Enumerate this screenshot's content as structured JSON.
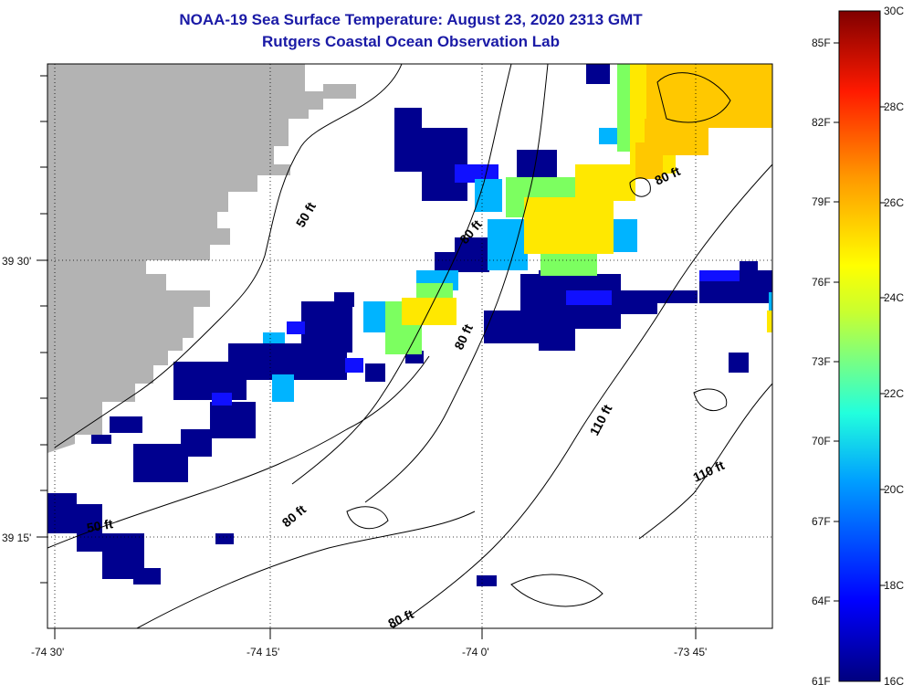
{
  "title": {
    "line1": "NOAA-19 Sea Surface Temperature:  August 23, 2020 2313 GMT",
    "line2": "Rutgers Coastal Ocean Observation Lab"
  },
  "colors": {
    "title": "#1a1aa6",
    "land": "#b3b3b3",
    "ocean_nodata": "#ffffff"
  },
  "axes": {
    "lon_labels": [
      "-74 30'",
      "-74 15'",
      "-74 0'",
      "-73 45'"
    ],
    "lat_labels": [
      "39 30'",
      "39 15'"
    ]
  },
  "contours": [
    {
      "label": "50 ft"
    },
    {
      "label": "80 ft"
    },
    {
      "label": "80 ft"
    },
    {
      "label": "80 ft"
    },
    {
      "label": "80 ft"
    },
    {
      "label": "80 ft"
    },
    {
      "label": "110 ft"
    },
    {
      "label": "110 ft"
    },
    {
      "label": "50 ft"
    }
  ],
  "colorbar": {
    "celsius": [
      "30C",
      "28C",
      "26C",
      "24C",
      "22C",
      "20C",
      "18C",
      "16C"
    ],
    "fahrenheit": [
      "85F",
      "82F",
      "79F",
      "76F",
      "73F",
      "70F",
      "67F",
      "64F",
      "61F"
    ],
    "range_c": [
      16,
      30
    ]
  }
}
